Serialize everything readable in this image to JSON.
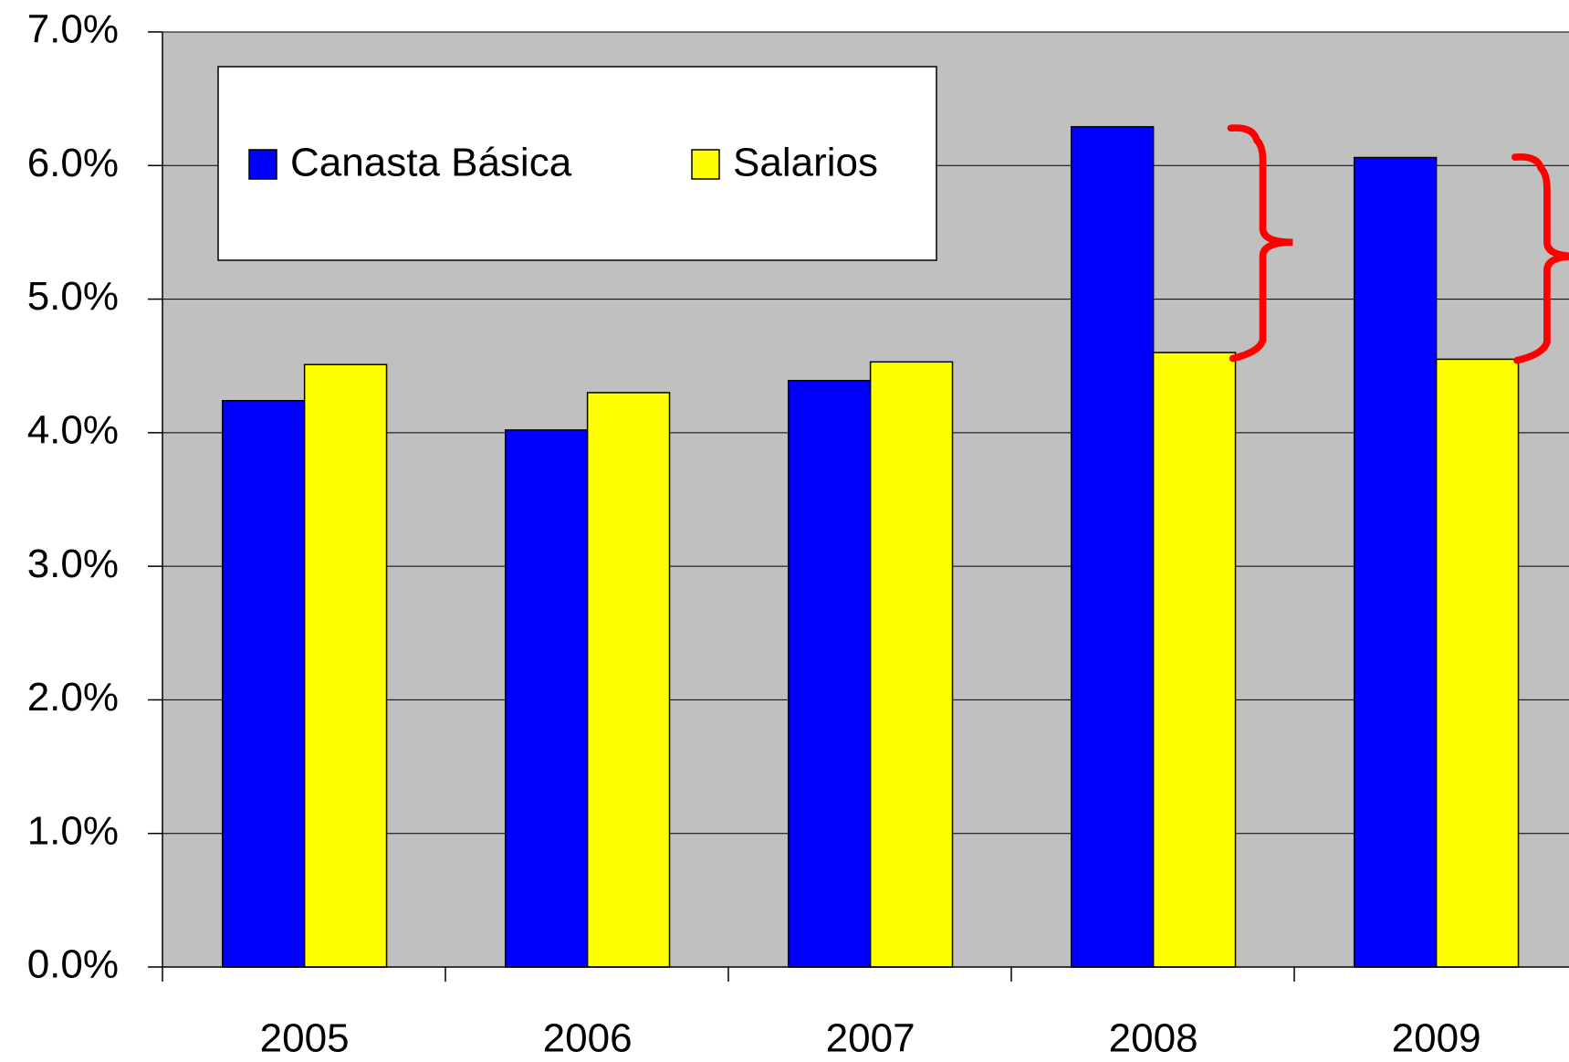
{
  "chart_data": {
    "type": "bar",
    "categories": [
      "2005",
      "2006",
      "2007",
      "2008",
      "2009"
    ],
    "series": [
      {
        "name": "Canasta Básica",
        "color": "#0000ff",
        "values": [
          4.24,
          4.02,
          4.39,
          6.29,
          6.06
        ]
      },
      {
        "name": "Salarios",
        "color": "#ffff00",
        "values": [
          4.51,
          4.3,
          4.53,
          4.6,
          4.55
        ]
      }
    ],
    "ylim": [
      0,
      7
    ],
    "yticks": [
      {
        "value": 0,
        "label": "0.0%"
      },
      {
        "value": 1,
        "label": "1.0%"
      },
      {
        "value": 2,
        "label": "2.0%"
      },
      {
        "value": 3,
        "label": "3.0%"
      },
      {
        "value": 4,
        "label": "4.0%"
      },
      {
        "value": 5,
        "label": "5.0%"
      },
      {
        "value": 6,
        "label": "6.0%"
      },
      {
        "value": 7,
        "label": "7.0%"
      }
    ],
    "grid": true,
    "legend": "top-left",
    "background": "#c0c0c0"
  }
}
